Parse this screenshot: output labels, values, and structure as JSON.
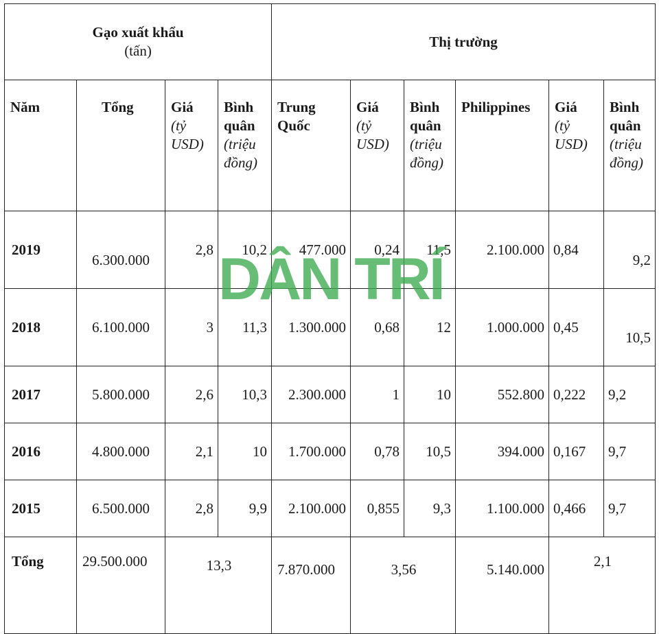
{
  "header": {
    "export_title": "Gạo xuất khẩu",
    "export_unit": "(tấn)",
    "market_title": "Thị trường"
  },
  "columns": {
    "year": "Năm",
    "total": "Tổng",
    "price_label": "Giá",
    "price_unit": "(tỷ USD)",
    "avg_label": "Bình quân",
    "avg_unit": "(triệu đồng)",
    "china": "Trung Quốc",
    "philippines": "Philippines"
  },
  "rows": [
    {
      "year": "2019",
      "total": "6.300.000",
      "price": "2,8",
      "avg": "10,2",
      "cn": "477.000",
      "cn_price": "0,24",
      "cn_avg": "11,5",
      "ph": "2.100.000",
      "ph_price": "0,84",
      "ph_avg": "9,2"
    },
    {
      "year": "2018",
      "total": "6.100.000",
      "price": "3",
      "avg": "11,3",
      "cn": "1.300.000",
      "cn_price": "0,68",
      "cn_avg": "12",
      "ph": "1.000.000",
      "ph_price": "0,45",
      "ph_avg": "10,5"
    },
    {
      "year": "2017",
      "total": "5.800.000",
      "price": "2,6",
      "avg": "10,3",
      "cn": "2.300.000",
      "cn_price": "1",
      "cn_avg": "10",
      "ph": "552.800",
      "ph_price": "0,222",
      "ph_avg": "9,2"
    },
    {
      "year": "2016",
      "total": "4.800.000",
      "price": "2,1",
      "avg": "10",
      "cn": "1.700.000",
      "cn_price": "0,78",
      "cn_avg": "10,5",
      "ph": "394.000",
      "ph_price": "0,167",
      "ph_avg": "9,7"
    },
    {
      "year": "2015",
      "total": "6.500.000",
      "price": "2,8",
      "avg": "9,9",
      "cn": "2.100.000",
      "cn_price": "0,855",
      "cn_avg": "9,3",
      "ph": "1.100.000",
      "ph_price": "0,466",
      "ph_avg": "9,7"
    }
  ],
  "totals": {
    "label": "Tổng",
    "total": "29.500.000",
    "price": "13,3",
    "cn": "7.870.000",
    "cn_price": "3,56",
    "ph": "5.140.000",
    "ph_price": "2,1"
  },
  "watermark": {
    "text": "DÂN TRÍ",
    "color": "#3caa50"
  }
}
